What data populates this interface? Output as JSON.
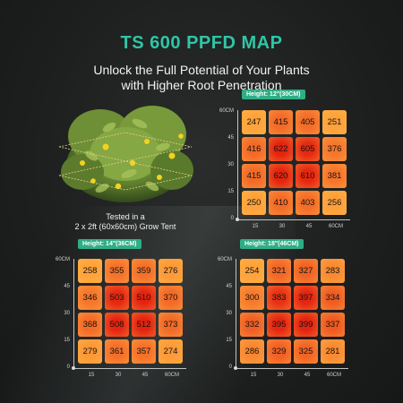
{
  "title": "TS 600 PPFD MAP",
  "subtitle": [
    "Unlock the Full Potential of Your Plants",
    "with Higher Root Penetration"
  ],
  "tested_note": [
    "Tested in a",
    "2 x 2ft (60x60cm) Grow Tent"
  ],
  "colors": {
    "accent": "#2fc6a6",
    "badge": "#2fae86",
    "cell_high": "#e5230f",
    "cell_low": "#ffa23a"
  },
  "maps": [
    {
      "height_label": "Height: 12\"(30CM)",
      "y_ticks": [
        "60CM",
        "45",
        "30",
        "15",
        "0"
      ],
      "x_ticks": [
        "15",
        "30",
        "45",
        "60CM"
      ],
      "values": [
        [
          247,
          415,
          405,
          251
        ],
        [
          416,
          622,
          605,
          376
        ],
        [
          415,
          620,
          610,
          381
        ],
        [
          250,
          410,
          403,
          256
        ]
      ]
    },
    {
      "height_label": "Height: 14\"(36CM)",
      "y_ticks": [
        "60CM",
        "45",
        "30",
        "15",
        "0"
      ],
      "x_ticks": [
        "15",
        "30",
        "45",
        "60CM"
      ],
      "values": [
        [
          258,
          355,
          359,
          276
        ],
        [
          346,
          503,
          510,
          370
        ],
        [
          368,
          508,
          512,
          373
        ],
        [
          279,
          361,
          357,
          274
        ]
      ]
    },
    {
      "height_label": "Height: 18\"(46CM)",
      "y_ticks": [
        "60CM",
        "45",
        "30",
        "15",
        "0"
      ],
      "x_ticks": [
        "15",
        "30",
        "45",
        "60CM"
      ],
      "values": [
        [
          254,
          321,
          327,
          283
        ],
        [
          300,
          383,
          397,
          334
        ],
        [
          332,
          395,
          399,
          337
        ],
        [
          286,
          329,
          325,
          281
        ]
      ]
    }
  ]
}
